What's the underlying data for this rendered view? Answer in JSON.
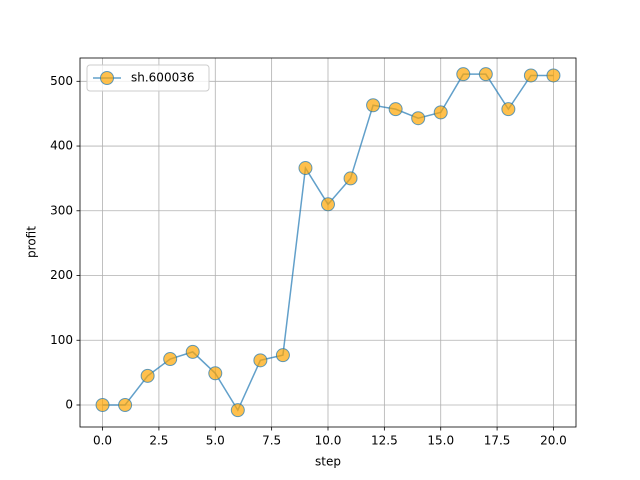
{
  "chart_data": {
    "type": "line",
    "x": [
      0,
      1,
      2,
      3,
      4,
      5,
      6,
      7,
      8,
      9,
      10,
      11,
      12,
      13,
      14,
      15,
      16,
      17,
      18,
      19,
      20
    ],
    "series": [
      {
        "name": "sh.600036",
        "color": "#1f77b4",
        "marker_color": "orange",
        "values": [
          0,
          0,
          45,
          71,
          82,
          49,
          -8,
          69,
          77,
          366,
          310,
          350,
          463,
          457,
          443,
          452,
          511,
          511,
          457,
          509,
          509
        ]
      }
    ],
    "xlabel": "step",
    "ylabel": "profit",
    "xlim": [
      -1,
      21
    ],
    "ylim": [
      -34,
      536
    ],
    "xticks": [
      {
        "value": 0,
        "label": "0.0"
      },
      {
        "value": 2.5,
        "label": "2.5"
      },
      {
        "value": 5,
        "label": "5.0"
      },
      {
        "value": 7.5,
        "label": "7.5"
      },
      {
        "value": 10,
        "label": "10.0"
      },
      {
        "value": 12.5,
        "label": "12.5"
      },
      {
        "value": 15,
        "label": "15.0"
      },
      {
        "value": 17.5,
        "label": "17.5"
      },
      {
        "value": 20,
        "label": "20.0"
      }
    ],
    "yticks": [
      0,
      100,
      200,
      300,
      400,
      500
    ],
    "grid": true,
    "legend": "upper left"
  }
}
